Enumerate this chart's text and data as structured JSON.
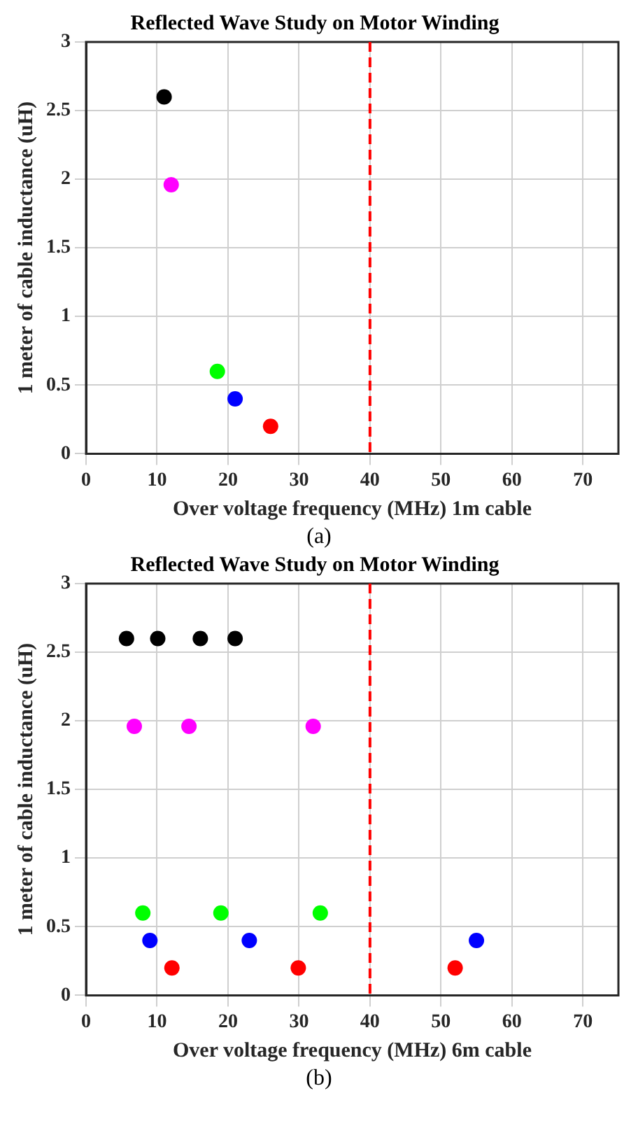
{
  "chart_data": [
    {
      "type": "scatter",
      "title": "Reflected Wave Study on Motor Winding",
      "xlabel": "Over voltage frequency (MHz) 1m cable",
      "ylabel": "1 meter of cable inductance (uH)",
      "annotations": [
        "(a)"
      ],
      "xlim": [
        0,
        75
      ],
      "xticks": [
        0,
        10,
        20,
        30,
        40,
        50,
        60,
        70
      ],
      "ylim": [
        0,
        3
      ],
      "yticks": [
        0,
        0.5,
        1,
        1.5,
        2,
        2.5,
        3
      ],
      "grid": true,
      "marker": "circle",
      "ref_lines": [
        {
          "axis": "x",
          "value": 40,
          "color": "#ff0000",
          "line_style": "dashed"
        }
      ],
      "series": [
        {
          "color": "#000000",
          "x": [
            11
          ],
          "values": [
            2.6
          ]
        },
        {
          "color": "#ff00ff",
          "x": [
            12
          ],
          "values": [
            1.96
          ]
        },
        {
          "color": "#00ff00",
          "x": [
            18.5
          ],
          "values": [
            0.6
          ]
        },
        {
          "color": "#0000ff",
          "x": [
            21
          ],
          "values": [
            0.4
          ]
        },
        {
          "color": "#ff0000",
          "x": [
            26
          ],
          "values": [
            0.2
          ]
        }
      ]
    },
    {
      "type": "scatter",
      "title": "Reflected Wave Study on Motor Winding",
      "xlabel": "Over voltage frequency (MHz) 6m cable",
      "ylabel": "1 meter of cable inductance (uH)",
      "annotations": [
        "(b)"
      ],
      "xlim": [
        0,
        75
      ],
      "xticks": [
        0,
        10,
        20,
        30,
        40,
        50,
        60,
        70
      ],
      "ylim": [
        0,
        3
      ],
      "yticks": [
        0,
        0.5,
        1,
        1.5,
        2,
        2.5,
        3
      ],
      "grid": true,
      "marker": "circle",
      "ref_lines": [
        {
          "axis": "x",
          "value": 40,
          "color": "#ff0000",
          "line_style": "dashed"
        }
      ],
      "series": [
        {
          "color": "#000000",
          "x": [
            5.7,
            10.1,
            16.1,
            21
          ],
          "values": [
            2.6,
            2.6,
            2.6,
            2.6
          ]
        },
        {
          "color": "#ff00ff",
          "x": [
            6.8,
            14.5,
            32
          ],
          "values": [
            1.96,
            1.96,
            1.96
          ]
        },
        {
          "color": "#00ff00",
          "x": [
            8,
            19,
            33
          ],
          "values": [
            0.6,
            0.6,
            0.6
          ]
        },
        {
          "color": "#0000ff",
          "x": [
            9,
            23,
            55
          ],
          "values": [
            0.4,
            0.4,
            0.4
          ]
        },
        {
          "color": "#ff0000",
          "x": [
            12.1,
            29.9,
            52
          ],
          "values": [
            0.2,
            0.2,
            0.2
          ]
        }
      ]
    }
  ]
}
